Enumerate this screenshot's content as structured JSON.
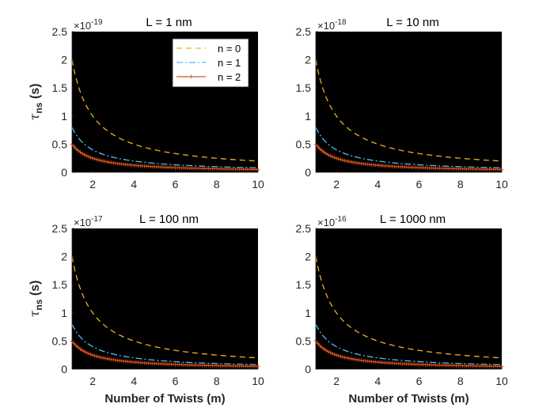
{
  "chart_data": [
    {
      "type": "line",
      "title": "L = 1 nm",
      "exponent_base": "×10",
      "exponent": "-19",
      "xlabel": "",
      "ylabel_main": "τ",
      "ylabel_sub": "ns",
      "ylabel_unit": " (s)",
      "xlim": [
        1,
        10
      ],
      "ylim": [
        0,
        2.5
      ],
      "xticks": [
        "2",
        "4",
        "6",
        "8",
        "10"
      ],
      "yticks": [
        "0",
        "0.5",
        "1",
        "1.5",
        "2",
        "2.5"
      ],
      "legend": {
        "position": "top-right",
        "entries": [
          "n = 0",
          "n = 1",
          "n = 2"
        ]
      },
      "series": [
        {
          "name": "n = 0",
          "amplitude": 2.0,
          "formula": "2.0/m",
          "color": "#EDB120"
        },
        {
          "name": "n = 1",
          "amplitude": 0.8,
          "formula": "0.8/m",
          "color": "#4DBEEE"
        },
        {
          "name": "n = 2",
          "amplitude": 0.5,
          "formula": "0.5/m",
          "color": "#D95319"
        }
      ]
    },
    {
      "type": "line",
      "title": "L = 10 nm",
      "exponent_base": "×10",
      "exponent": "-18",
      "xlabel": "",
      "ylabel_main": "",
      "ylabel_sub": "",
      "ylabel_unit": "",
      "xlim": [
        1,
        10
      ],
      "ylim": [
        0,
        2.5
      ],
      "xticks": [
        "2",
        "4",
        "6",
        "8",
        "10"
      ],
      "yticks": [
        "0",
        "0.5",
        "1",
        "1.5",
        "2",
        "2.5"
      ],
      "series": [
        {
          "name": "n = 0",
          "amplitude": 2.0,
          "formula": "2.0/m",
          "color": "#EDB120"
        },
        {
          "name": "n = 1",
          "amplitude": 0.8,
          "formula": "0.8/m",
          "color": "#4DBEEE"
        },
        {
          "name": "n = 2",
          "amplitude": 0.5,
          "formula": "0.5/m",
          "color": "#D95319"
        }
      ]
    },
    {
      "type": "line",
      "title": "L = 100 nm",
      "exponent_base": "×10",
      "exponent": "-17",
      "xlabel": "Number of Twists (m)",
      "ylabel_main": "τ",
      "ylabel_sub": "ns",
      "ylabel_unit": " (s)",
      "xlim": [
        1,
        10
      ],
      "ylim": [
        0,
        2.5
      ],
      "xticks": [
        "2",
        "4",
        "6",
        "8",
        "10"
      ],
      "yticks": [
        "0",
        "0.5",
        "1",
        "1.5",
        "2",
        "2.5"
      ],
      "series": [
        {
          "name": "n = 0",
          "amplitude": 2.0,
          "formula": "2.0/m",
          "color": "#EDB120"
        },
        {
          "name": "n = 1",
          "amplitude": 0.8,
          "formula": "0.8/m",
          "color": "#4DBEEE"
        },
        {
          "name": "n = 2",
          "amplitude": 0.5,
          "formula": "0.5/m",
          "color": "#D95319"
        }
      ]
    },
    {
      "type": "line",
      "title": "L = 1000 nm",
      "exponent_base": "×10",
      "exponent": "-16",
      "xlabel": "Number of Twists (m)",
      "ylabel_main": "",
      "ylabel_sub": "",
      "ylabel_unit": "",
      "xlim": [
        1,
        10
      ],
      "ylim": [
        0,
        2.5
      ],
      "xticks": [
        "2",
        "4",
        "6",
        "8",
        "10"
      ],
      "yticks": [
        "0",
        "0.5",
        "1",
        "1.5",
        "2",
        "2.5"
      ],
      "series": [
        {
          "name": "n = 0",
          "amplitude": 2.0,
          "formula": "2.0/m",
          "color": "#EDB120"
        },
        {
          "name": "n = 1",
          "amplitude": 0.8,
          "formula": "0.8/m",
          "color": "#4DBEEE"
        },
        {
          "name": "n = 2",
          "amplitude": 0.5,
          "formula": "0.5/m",
          "color": "#D95319"
        }
      ]
    }
  ],
  "style": {
    "plot_background": "#000000",
    "axis_color": "#262626",
    "page_background": "#ffffff"
  }
}
